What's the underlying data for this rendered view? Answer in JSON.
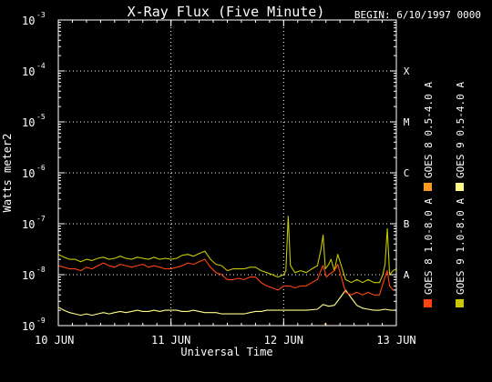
{
  "chart_data": {
    "type": "line",
    "title": "X-Ray Flux (Five Minute)",
    "begin_label": "BEGIN: 6/10/1997 0000",
    "ylabel": "Watts meter2",
    "xlabel": "Universal Time",
    "y_scale": "log",
    "ylim": [
      1e-09,
      0.001
    ],
    "y_ticks": [
      {
        "base": "10",
        "exp": "-3",
        "value": 0.001
      },
      {
        "base": "10",
        "exp": "-4",
        "value": 0.0001
      },
      {
        "base": "10",
        "exp": "-5",
        "value": 1e-05
      },
      {
        "base": "10",
        "exp": "-6",
        "value": 1e-06
      },
      {
        "base": "10",
        "exp": "-7",
        "value": 1e-07
      },
      {
        "base": "10",
        "exp": "-8",
        "value": 1e-08
      },
      {
        "base": "10",
        "exp": "-9",
        "value": 1e-09
      }
    ],
    "x_ticks": [
      {
        "label": "10 JUN",
        "day": 0
      },
      {
        "label": "11 JUN",
        "day": 1
      },
      {
        "label": "12 JUN",
        "day": 2
      },
      {
        "label": "13 JUN",
        "day": 3
      }
    ],
    "xlim_days": [
      0,
      3
    ],
    "flare_classes": [
      {
        "label": "X",
        "value": 0.0001
      },
      {
        "label": "M",
        "value": 1e-05
      },
      {
        "label": "C",
        "value": 1e-06
      },
      {
        "label": "B",
        "value": 1e-07
      },
      {
        "label": "A",
        "value": 1e-08
      }
    ],
    "grid": true,
    "legend": [
      {
        "label": "GOES 8 1.0-8.0 A",
        "color": "#ff4411"
      },
      {
        "label": "GOES 8 0.5-4.0 A",
        "color": "#ff9922"
      },
      {
        "label": "GOES 9 1.0-8.0 A",
        "color": "#c8c800"
      },
      {
        "label": "GOES 9 0.5-4.0 A",
        "color": "#ffff88"
      }
    ],
    "series": [
      {
        "name": "GOES 9 1.0-8.0 A",
        "color": "#c8c800",
        "points": [
          [
            0,
            2.5e-08
          ],
          [
            0.05,
            2.2e-08
          ],
          [
            0.1,
            2e-08
          ],
          [
            0.15,
            2e-08
          ],
          [
            0.2,
            1.8e-08
          ],
          [
            0.25,
            2e-08
          ],
          [
            0.3,
            1.9e-08
          ],
          [
            0.35,
            2.1e-08
          ],
          [
            0.4,
            2.2e-08
          ],
          [
            0.45,
            2e-08
          ],
          [
            0.5,
            2.1e-08
          ],
          [
            0.55,
            2.3e-08
          ],
          [
            0.6,
            2.1e-08
          ],
          [
            0.65,
            2e-08
          ],
          [
            0.7,
            2.2e-08
          ],
          [
            0.75,
            2.1e-08
          ],
          [
            0.8,
            2e-08
          ],
          [
            0.85,
            2.2e-08
          ],
          [
            0.9,
            2e-08
          ],
          [
            0.95,
            2.1e-08
          ],
          [
            1.0,
            2e-08
          ],
          [
            1.05,
            2.1e-08
          ],
          [
            1.1,
            2.4e-08
          ],
          [
            1.15,
            2.5e-08
          ],
          [
            1.2,
            2.3e-08
          ],
          [
            1.25,
            2.6e-08
          ],
          [
            1.3,
            2.9e-08
          ],
          [
            1.35,
            2e-08
          ],
          [
            1.4,
            1.6e-08
          ],
          [
            1.45,
            1.5e-08
          ],
          [
            1.5,
            1.2e-08
          ],
          [
            1.55,
            1.3e-08
          ],
          [
            1.6,
            1.3e-08
          ],
          [
            1.65,
            1.3e-08
          ],
          [
            1.7,
            1.4e-08
          ],
          [
            1.75,
            1.4e-08
          ],
          [
            1.8,
            1.2e-08
          ],
          [
            1.85,
            1.1e-08
          ],
          [
            1.9,
            1e-08
          ],
          [
            1.95,
            9e-09
          ],
          [
            2.0,
            1e-08
          ],
          [
            2.02,
            1.2e-08
          ],
          [
            2.04,
            1.4e-07
          ],
          [
            2.06,
            1.5e-08
          ],
          [
            2.1,
            1.1e-08
          ],
          [
            2.15,
            1.2e-08
          ],
          [
            2.2,
            1.1e-08
          ],
          [
            2.25,
            1.3e-08
          ],
          [
            2.3,
            1.5e-08
          ],
          [
            2.33,
            3e-08
          ],
          [
            2.35,
            6e-08
          ],
          [
            2.37,
            1.3e-08
          ],
          [
            2.4,
            1.6e-08
          ],
          [
            2.42,
            2e-08
          ],
          [
            2.45,
            1.2e-08
          ],
          [
            2.48,
            2.5e-08
          ],
          [
            2.5,
            1.8e-08
          ],
          [
            2.55,
            8e-09
          ],
          [
            2.6,
            7e-09
          ],
          [
            2.65,
            8e-09
          ],
          [
            2.7,
            7e-09
          ],
          [
            2.75,
            8e-09
          ],
          [
            2.8,
            7e-09
          ],
          [
            2.85,
            7e-09
          ],
          [
            2.88,
            1e-08
          ],
          [
            2.9,
            1.6e-08
          ],
          [
            2.92,
            8e-08
          ],
          [
            2.94,
            1e-08
          ],
          [
            2.97,
            1.2e-08
          ],
          [
            3.0,
            1.3e-08
          ]
        ]
      },
      {
        "name": "GOES 9 0.5-4.0 A",
        "color": "#ffff88",
        "points": [
          [
            0,
            2.3e-09
          ],
          [
            0.05,
            2e-09
          ],
          [
            0.1,
            1.8e-09
          ],
          [
            0.15,
            1.7e-09
          ],
          [
            0.2,
            1.6e-09
          ],
          [
            0.25,
            1.7e-09
          ],
          [
            0.3,
            1.6e-09
          ],
          [
            0.35,
            1.7e-09
          ],
          [
            0.4,
            1.8e-09
          ],
          [
            0.45,
            1.7e-09
          ],
          [
            0.5,
            1.8e-09
          ],
          [
            0.55,
            1.9e-09
          ],
          [
            0.6,
            1.8e-09
          ],
          [
            0.65,
            1.9e-09
          ],
          [
            0.7,
            2e-09
          ],
          [
            0.75,
            1.9e-09
          ],
          [
            0.8,
            1.9e-09
          ],
          [
            0.85,
            2e-09
          ],
          [
            0.9,
            1.9e-09
          ],
          [
            0.95,
            2e-09
          ],
          [
            1.0,
            2e-09
          ],
          [
            1.05,
            2e-09
          ],
          [
            1.1,
            1.9e-09
          ],
          [
            1.15,
            1.9e-09
          ],
          [
            1.2,
            2e-09
          ],
          [
            1.25,
            1.9e-09
          ],
          [
            1.3,
            1.8e-09
          ],
          [
            1.35,
            1.8e-09
          ],
          [
            1.4,
            1.8e-09
          ],
          [
            1.45,
            1.7e-09
          ],
          [
            1.5,
            1.7e-09
          ],
          [
            1.55,
            1.7e-09
          ],
          [
            1.6,
            1.7e-09
          ],
          [
            1.65,
            1.7e-09
          ],
          [
            1.7,
            1.8e-09
          ],
          [
            1.75,
            1.9e-09
          ],
          [
            1.8,
            1.9e-09
          ],
          [
            1.85,
            2e-09
          ],
          [
            1.9,
            2e-09
          ],
          [
            1.95,
            2e-09
          ],
          [
            2.0,
            2e-09
          ],
          [
            2.1,
            2e-09
          ],
          [
            2.2,
            2e-09
          ],
          [
            2.3,
            2.1e-09
          ],
          [
            2.35,
            2.6e-09
          ],
          [
            2.4,
            2.4e-09
          ],
          [
            2.45,
            2.5e-09
          ],
          [
            2.5,
            3.5e-09
          ],
          [
            2.55,
            5e-09
          ],
          [
            2.6,
            3.5e-09
          ],
          [
            2.65,
            2.5e-09
          ],
          [
            2.7,
            2.2e-09
          ],
          [
            2.75,
            2.1e-09
          ],
          [
            2.8,
            2e-09
          ],
          [
            2.85,
            2e-09
          ],
          [
            2.9,
            2.1e-09
          ],
          [
            2.95,
            2e-09
          ],
          [
            3.0,
            2e-09
          ]
        ]
      },
      {
        "name": "GOES 8 1.0-8.0 A",
        "color": "#ff4411",
        "points": [
          [
            0,
            1.5e-08
          ],
          [
            0.05,
            1.4e-08
          ],
          [
            0.1,
            1.3e-08
          ],
          [
            0.15,
            1.3e-08
          ],
          [
            0.2,
            1.2e-08
          ],
          [
            0.25,
            1.4e-08
          ],
          [
            0.3,
            1.3e-08
          ],
          [
            0.35,
            1.5e-08
          ],
          [
            0.4,
            1.7e-08
          ],
          [
            0.45,
            1.5e-08
          ],
          [
            0.5,
            1.4e-08
          ],
          [
            0.55,
            1.6e-08
          ],
          [
            0.6,
            1.5e-08
          ],
          [
            0.65,
            1.4e-08
          ],
          [
            0.7,
            1.5e-08
          ],
          [
            0.75,
            1.6e-08
          ],
          [
            0.8,
            1.4e-08
          ],
          [
            0.85,
            1.5e-08
          ],
          [
            0.9,
            1.4e-08
          ],
          [
            0.95,
            1.3e-08
          ],
          [
            1.0,
            1.3e-08
          ],
          [
            1.05,
            1.4e-08
          ],
          [
            1.1,
            1.5e-08
          ],
          [
            1.15,
            1.7e-08
          ],
          [
            1.2,
            1.6e-08
          ],
          [
            1.25,
            1.8e-08
          ],
          [
            1.3,
            2e-08
          ],
          [
            1.35,
            1.4e-08
          ],
          [
            1.4,
            1.1e-08
          ],
          [
            1.45,
            1e-08
          ],
          [
            1.5,
            8e-09
          ],
          [
            1.55,
            8e-09
          ],
          [
            1.6,
            8.5e-09
          ],
          [
            1.65,
            8e-09
          ],
          [
            1.7,
            9e-09
          ],
          [
            1.75,
            9e-09
          ],
          [
            1.8,
            7e-09
          ],
          [
            1.85,
            6e-09
          ],
          [
            1.9,
            5.5e-09
          ],
          [
            1.95,
            5e-09
          ],
          [
            2.0,
            6e-09
          ],
          [
            2.05,
            6e-09
          ],
          [
            2.1,
            5.5e-09
          ],
          [
            2.15,
            6e-09
          ],
          [
            2.2,
            6e-09
          ],
          [
            2.25,
            7e-09
          ],
          [
            2.3,
            8e-09
          ],
          [
            2.33,
            1.2e-08
          ],
          [
            2.35,
            1.5e-08
          ],
          [
            2.38,
            9e-09
          ],
          [
            2.4,
            1e-08
          ],
          [
            2.45,
            1.2e-08
          ],
          [
            2.48,
            1.6e-08
          ],
          [
            2.5,
            1.1e-08
          ],
          [
            2.55,
            4.5e-09
          ],
          [
            2.6,
            4e-09
          ],
          [
            2.65,
            4.5e-09
          ],
          [
            2.7,
            4e-09
          ],
          [
            2.75,
            4.5e-09
          ],
          [
            2.8,
            4e-09
          ],
          [
            2.85,
            4e-09
          ],
          [
            2.9,
            9e-09
          ],
          [
            2.92,
            1.2e-08
          ],
          [
            2.94,
            6e-09
          ],
          [
            2.97,
            5e-09
          ],
          [
            3.0,
            5e-09
          ]
        ]
      },
      {
        "name": "GOES 8 0.5-4.0 A",
        "color": "#ff9922",
        "points": [
          [
            2.36,
            1.05e-09
          ],
          [
            2.37,
            1.1e-09
          ],
          [
            2.38,
            1e-09
          ]
        ]
      }
    ]
  }
}
